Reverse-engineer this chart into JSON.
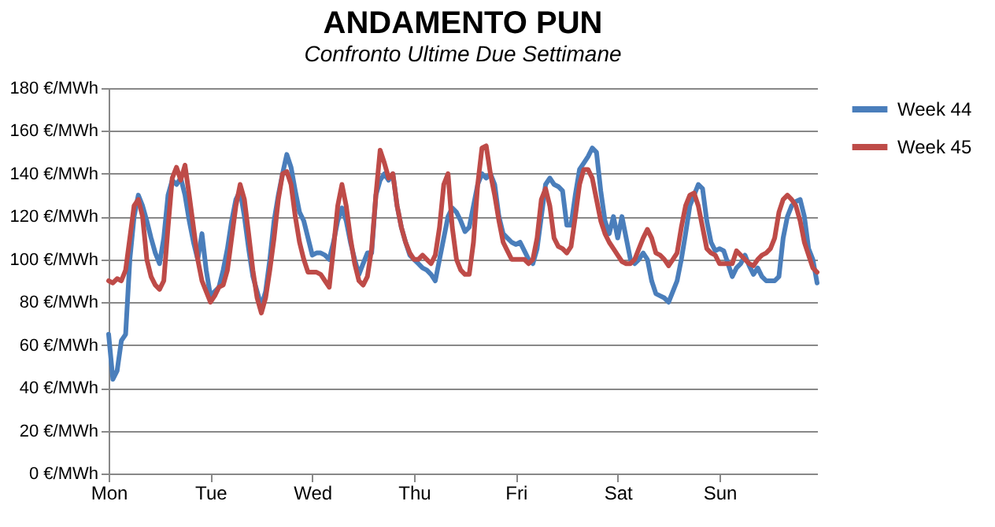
{
  "chart_data": {
    "type": "line",
    "title": "ANDAMENTO PUN",
    "subtitle": "Confronto Ultime Due Settimane",
    "categories": [
      "Mon",
      null,
      null,
      null,
      null,
      null,
      null,
      null,
      null,
      null,
      null,
      null,
      null,
      null,
      null,
      null,
      null,
      null,
      null,
      null,
      null,
      null,
      null,
      null,
      "Tue",
      null,
      null,
      null,
      null,
      null,
      null,
      null,
      null,
      null,
      null,
      null,
      null,
      null,
      null,
      null,
      null,
      null,
      null,
      null,
      null,
      null,
      null,
      null,
      "Wed",
      null,
      null,
      null,
      null,
      null,
      null,
      null,
      null,
      null,
      null,
      null,
      null,
      null,
      null,
      null,
      null,
      null,
      null,
      null,
      null,
      null,
      null,
      null,
      "Thu",
      null,
      null,
      null,
      null,
      null,
      null,
      null,
      null,
      null,
      null,
      null,
      null,
      null,
      null,
      null,
      null,
      null,
      null,
      null,
      null,
      null,
      null,
      null,
      "Fri",
      null,
      null,
      null,
      null,
      null,
      null,
      null,
      null,
      null,
      null,
      null,
      null,
      null,
      null,
      null,
      null,
      null,
      null,
      null,
      null,
      null,
      null,
      null,
      "Sat",
      null,
      null,
      null,
      null,
      null,
      null,
      null,
      null,
      null,
      null,
      null,
      null,
      null,
      null,
      null,
      null,
      null,
      null,
      null,
      null,
      null,
      null,
      null,
      "Sun",
      null,
      null,
      null,
      null,
      null,
      null,
      null,
      null,
      null,
      null,
      null,
      null,
      null,
      null,
      null,
      null,
      null,
      null,
      null,
      null,
      null,
      null,
      null
    ],
    "series": [
      {
        "name": "Week 44",
        "color": "#4a7ebb",
        "values": [
          65,
          44,
          48,
          62,
          65,
          100,
          120,
          130,
          125,
          118,
          110,
          103,
          98,
          110,
          130,
          137,
          135,
          138,
          130,
          118,
          108,
          100,
          112,
          95,
          83,
          85,
          87,
          95,
          105,
          118,
          128,
          132,
          120,
          105,
          92,
          85,
          78,
          85,
          100,
          118,
          130,
          140,
          149,
          143,
          132,
          122,
          118,
          110,
          102,
          103,
          103,
          102,
          100,
          108,
          118,
          124,
          118,
          108,
          100,
          93,
          98,
          103,
          103,
          130,
          137,
          140,
          137,
          140,
          125,
          115,
          108,
          102,
          100,
          98,
          96,
          95,
          93,
          90,
          100,
          110,
          120,
          124,
          122,
          118,
          113,
          115,
          125,
          135,
          140,
          138,
          140,
          135,
          120,
          112,
          110,
          108,
          107,
          108,
          104,
          100,
          98,
          105,
          120,
          135,
          138,
          135,
          134,
          132,
          116,
          116,
          130,
          142,
          145,
          148,
          152,
          150,
          132,
          118,
          112,
          120,
          110,
          120,
          110,
          100,
          98,
          100,
          103,
          100,
          90,
          84,
          83,
          82,
          80,
          85,
          90,
          100,
          112,
          125,
          130,
          135,
          133,
          118,
          108,
          104,
          105,
          104,
          98,
          92,
          96,
          98,
          102,
          97,
          93,
          96,
          92,
          90,
          90,
          90,
          92,
          110,
          120,
          125,
          127,
          128,
          120,
          105,
          100,
          89
        ]
      },
      {
        "name": "Week 45",
        "color": "#be4b48",
        "values": [
          90,
          89,
          91,
          90,
          95,
          110,
          125,
          128,
          120,
          100,
          92,
          88,
          86,
          90,
          115,
          138,
          143,
          137,
          144,
          130,
          115,
          100,
          90,
          85,
          80,
          83,
          87,
          88,
          95,
          110,
          125,
          135,
          128,
          112,
          95,
          82,
          75,
          82,
          95,
          110,
          128,
          140,
          141,
          135,
          120,
          108,
          100,
          94,
          94,
          94,
          93,
          90,
          87,
          105,
          125,
          135,
          125,
          110,
          98,
          90,
          88,
          92,
          105,
          130,
          151,
          145,
          138,
          140,
          125,
          115,
          108,
          103,
          100,
          100,
          102,
          100,
          98,
          102,
          115,
          135,
          140,
          115,
          100,
          95,
          93,
          93,
          108,
          135,
          152,
          153,
          140,
          130,
          118,
          108,
          104,
          100,
          100,
          100,
          100,
          98,
          100,
          110,
          128,
          133,
          125,
          110,
          106,
          105,
          103,
          106,
          120,
          135,
          142,
          142,
          138,
          128,
          118,
          112,
          108,
          105,
          102,
          99,
          98,
          98,
          100,
          105,
          110,
          114,
          110,
          103,
          102,
          100,
          97,
          100,
          103,
          115,
          125,
          130,
          131,
          125,
          115,
          105,
          103,
          102,
          98,
          98,
          98,
          98,
          104,
          102,
          100,
          98,
          97,
          100,
          102,
          103,
          105,
          110,
          122,
          128,
          130,
          128,
          125,
          118,
          108,
          102,
          96,
          94
        ]
      }
    ],
    "ylim": [
      0,
      180
    ],
    "yticks": [
      {
        "value": 0,
        "label": "0 €/MWh"
      },
      {
        "value": 20,
        "label": "20 €/MWh"
      },
      {
        "value": 40,
        "label": "40 €/MWh"
      },
      {
        "value": 60,
        "label": "60 €/MWh"
      },
      {
        "value": 80,
        "label": "80 €/MWh"
      },
      {
        "value": 100,
        "label": "100 €/MWh"
      },
      {
        "value": 120,
        "label": "120 €/MWh"
      },
      {
        "value": 140,
        "label": "140 €/MWh"
      },
      {
        "value": 160,
        "label": "160 €/MWh"
      },
      {
        "value": 180,
        "label": "180 €/MWh"
      }
    ],
    "grid": "y",
    "legend": "right"
  }
}
